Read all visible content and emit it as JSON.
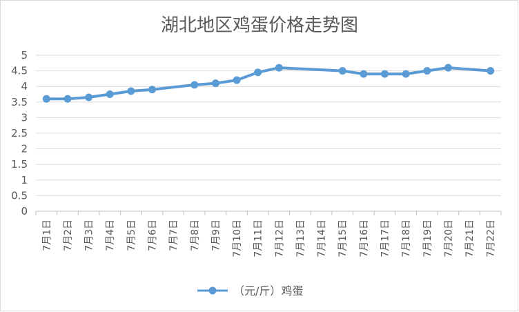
{
  "chart_data": {
    "type": "line",
    "title": "湖北地区鸡蛋价格走势图",
    "xlabel": "",
    "ylabel": "",
    "ylim": [
      0,
      5
    ],
    "yticks": [
      "0",
      "0.5",
      "1",
      "1.5",
      "2",
      "2.5",
      "3",
      "3.5",
      "4",
      "4.5",
      "5"
    ],
    "grid": true,
    "legend_position": "bottom",
    "categories": [
      "7月1日",
      "7月2日",
      "7月3日",
      "7月4日",
      "7月5日",
      "7月6日",
      "7月7日",
      "7月8日",
      "7月9日",
      "7月10日",
      "7月11日",
      "7月12日",
      "7月13日",
      "7月14日",
      "7月15日",
      "7月16日",
      "7月17日",
      "7月18日",
      "7月19日",
      "7月20日",
      "7月21日",
      "7月22日"
    ],
    "series": [
      {
        "name": "（元/斤）鸡蛋",
        "color": "#5b9bd5",
        "values": [
          3.6,
          3.6,
          3.65,
          3.75,
          3.85,
          3.9,
          null,
          4.05,
          4.1,
          4.2,
          4.45,
          4.6,
          null,
          null,
          4.5,
          4.4,
          4.4,
          4.4,
          4.5,
          4.6,
          null,
          4.5
        ]
      }
    ]
  }
}
